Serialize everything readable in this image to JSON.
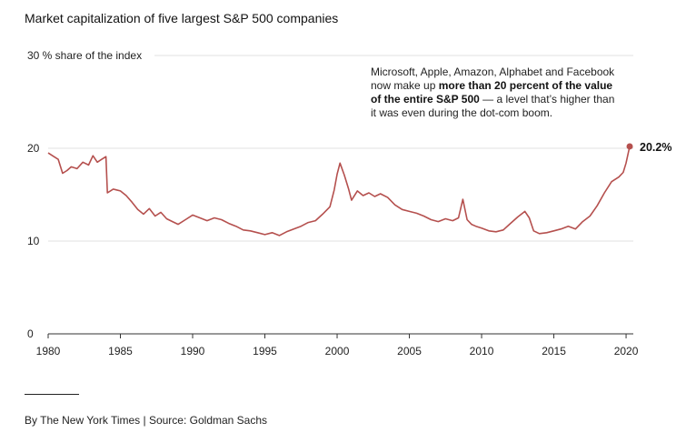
{
  "title": "Market capitalization of five largest S&P 500 companies",
  "annotation": {
    "pre": "Microsoft, Apple, Amazon, Alphabet and Facebook now make up ",
    "bold": "more than 20 percent of the value of the entire S&P 500",
    "post": " — a level that’s higher than it was even during the dot-com boom."
  },
  "source": "By The New York Times | Source: Goldman Sachs",
  "colors": {
    "line": "#b5504e",
    "grid": "#e2e2e2",
    "axis": "#333333"
  },
  "chart_data": {
    "type": "line",
    "title": "Market capitalization of five largest S&P 500 companies",
    "ylabel": "% share of the index",
    "xlim": [
      1980,
      2020.5
    ],
    "ylim": [
      0,
      30
    ],
    "yticks": [
      0,
      10,
      20,
      30
    ],
    "ytick_labels": [
      "0",
      "10",
      "20",
      "30"
    ],
    "xticks": [
      1980,
      1985,
      1990,
      1995,
      2000,
      2005,
      2010,
      2015,
      2020
    ],
    "xtick_labels": [
      "1980",
      "1985",
      "1990",
      "1995",
      "2000",
      "2005",
      "2010",
      "2015",
      "2020"
    ],
    "end_label": "20.2%",
    "grid": true,
    "series": [
      {
        "x": [
          1980,
          1980.3,
          1980.7,
          1981,
          1981.3,
          1981.6,
          1982,
          1982.4,
          1982.8,
          1983.1,
          1983.4,
          1983.7,
          1984,
          1984.1,
          1984.5,
          1985,
          1985.4,
          1985.8,
          1986.2,
          1986.6,
          1987,
          1987.4,
          1987.8,
          1988.2,
          1988.6,
          1989,
          1989.5,
          1990,
          1990.5,
          1991,
          1991.5,
          1992,
          1992.5,
          1993,
          1993.5,
          1994,
          1994.5,
          1995,
          1995.5,
          1996,
          1996.5,
          1997,
          1997.5,
          1998,
          1998.5,
          1999,
          1999.5,
          1999.8,
          2000,
          2000.2,
          2000.5,
          2000.8,
          2001,
          2001.4,
          2001.8,
          2002.2,
          2002.6,
          2003,
          2003.5,
          2004,
          2004.5,
          2005,
          2005.5,
          2006,
          2006.5,
          2007,
          2007.5,
          2008,
          2008.4,
          2008.7,
          2009,
          2009.3,
          2009.6,
          2010,
          2010.5,
          2011,
          2011.5,
          2012,
          2012.5,
          2013,
          2013.3,
          2013.6,
          2014,
          2014.5,
          2015,
          2015.5,
          2016,
          2016.5,
          2017,
          2017.5,
          2018,
          2018.5,
          2019,
          2019.5,
          2019.8,
          2020,
          2020.25
        ],
        "y": [
          19.5,
          19.2,
          18.8,
          17.3,
          17.6,
          18,
          17.8,
          18.5,
          18.2,
          19.2,
          18.5,
          18.8,
          19.1,
          15.2,
          15.6,
          15.4,
          14.9,
          14.2,
          13.4,
          12.9,
          13.5,
          12.7,
          13.1,
          12.4,
          12.1,
          11.8,
          12.3,
          12.8,
          12.5,
          12.2,
          12.5,
          12.3,
          11.9,
          11.6,
          11.2,
          11.1,
          10.9,
          10.7,
          10.9,
          10.6,
          11,
          11.3,
          11.6,
          12,
          12.2,
          12.9,
          13.7,
          15.5,
          17.2,
          18.4,
          17.1,
          15.6,
          14.4,
          15.4,
          14.9,
          15.2,
          14.8,
          15.1,
          14.7,
          13.9,
          13.4,
          13.2,
          13,
          12.7,
          12.3,
          12.1,
          12.4,
          12.2,
          12.5,
          14.5,
          12.3,
          11.8,
          11.6,
          11.4,
          11.1,
          11,
          11.2,
          11.9,
          12.6,
          13.2,
          12.5,
          11.1,
          10.8,
          10.9,
          11.1,
          11.3,
          11.6,
          11.3,
          12.1,
          12.7,
          13.8,
          15.2,
          16.4,
          16.9,
          17.4,
          18.4,
          20.2
        ]
      }
    ]
  }
}
